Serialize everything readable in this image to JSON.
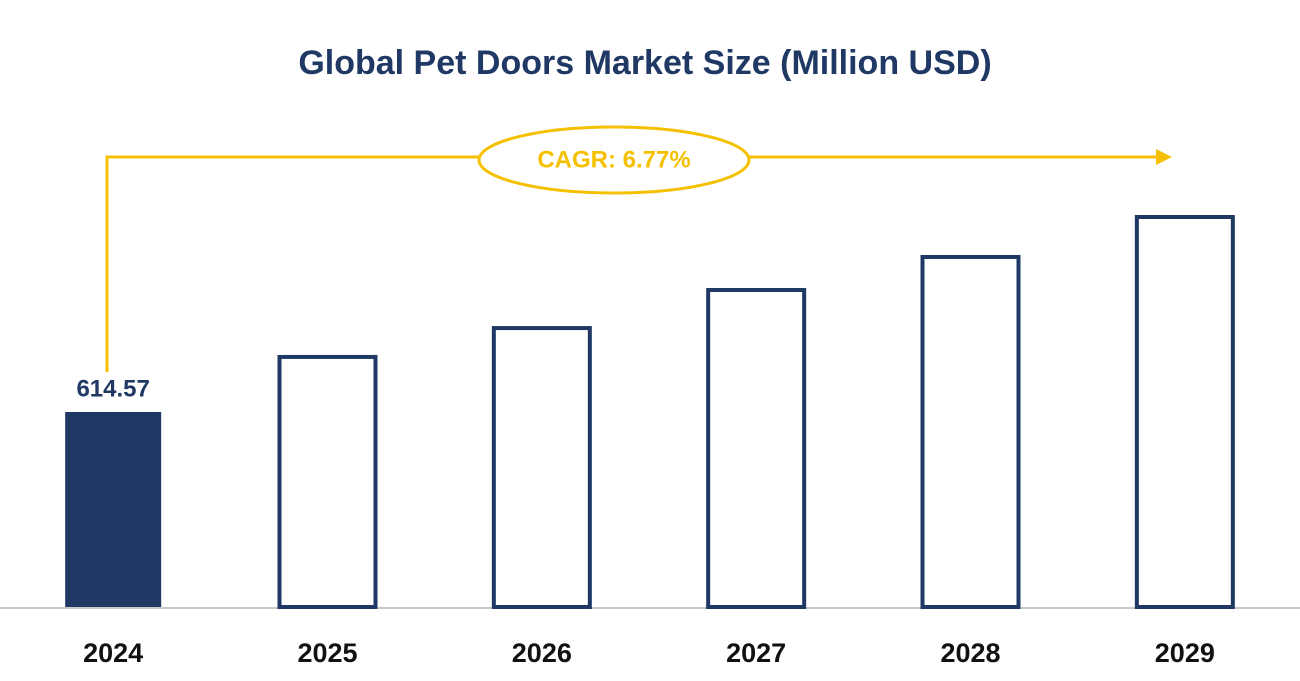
{
  "chart_data": {
    "type": "bar",
    "title": "Global Pet Doors Market Size (Million USD)",
    "categories": [
      "2024",
      "2025",
      "2026",
      "2027",
      "2028",
      "2029"
    ],
    "values": [
      614.57,
      788,
      879,
      999,
      1103,
      1229
    ],
    "value_labels": [
      "614.57",
      null,
      null,
      null,
      null,
      null
    ],
    "filled": [
      true,
      false,
      false,
      false,
      false,
      false
    ],
    "color": "#1f3864",
    "annotation": "CAGR: 6.77%",
    "annotation_color": "#f5c000"
  }
}
